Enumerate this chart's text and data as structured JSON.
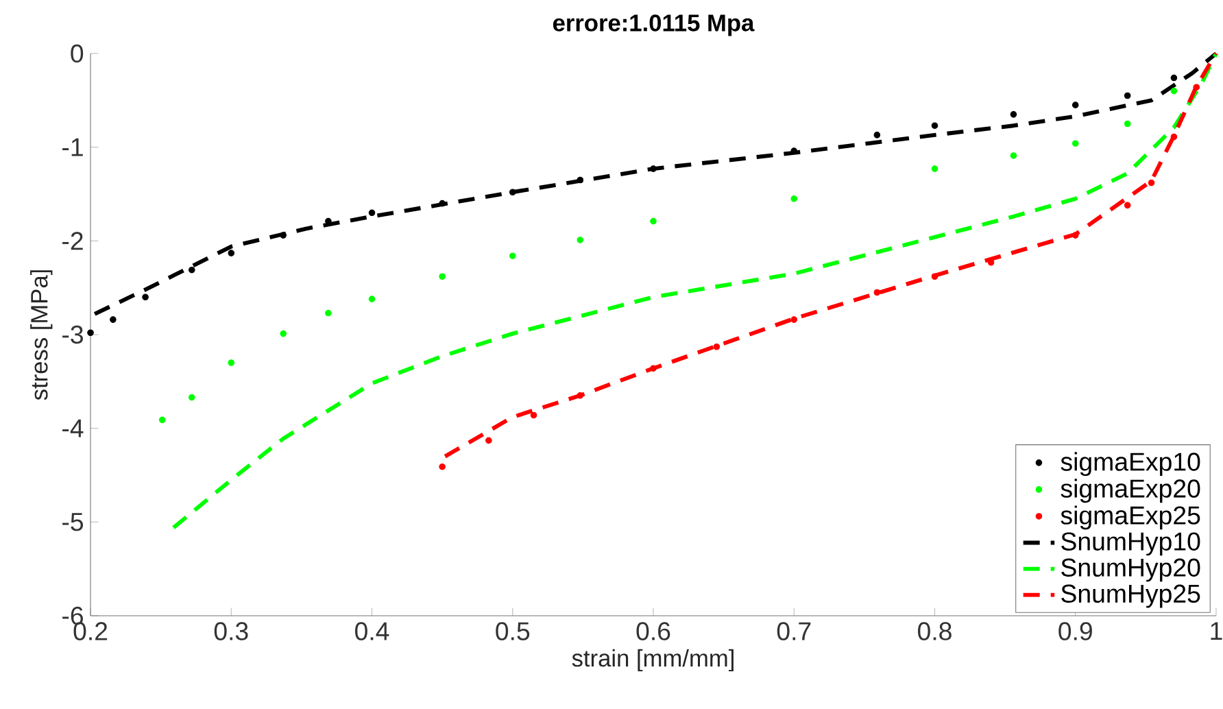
{
  "chart_data": {
    "type": "line",
    "title": "errore:1.0115 Mpa",
    "xlabel": "strain [mm/mm]",
    "ylabel": "stress [MPa]",
    "xlim": [
      0.2,
      1
    ],
    "ylim": [
      -6,
      0
    ],
    "xticks": [
      0.2,
      0.3,
      0.4,
      0.5,
      0.6,
      0.7,
      0.8,
      0.9,
      1
    ],
    "yticks": [
      -6,
      -5,
      -4,
      -3,
      -2,
      -1,
      0
    ],
    "grid": false,
    "legend": "bottom right",
    "series": [
      {
        "name": "sigmaExp10",
        "type": "scatter",
        "marker": "circle",
        "color": "#000000",
        "x": [
          0.2,
          0.216,
          0.239,
          0.272,
          0.3,
          0.337,
          0.369,
          0.4,
          0.45,
          0.5,
          0.548,
          0.6,
          0.7,
          0.759,
          0.8,
          0.856,
          0.9,
          0.937,
          0.97
        ],
        "values": [
          -2.98,
          -2.84,
          -2.6,
          -2.31,
          -2.13,
          -1.94,
          -1.79,
          -1.7,
          -1.6,
          -1.48,
          -1.35,
          -1.23,
          -1.04,
          -0.87,
          -0.77,
          -0.65,
          -0.55,
          -0.45,
          -0.26
        ]
      },
      {
        "name": "sigmaExp20",
        "type": "scatter",
        "marker": "circle",
        "color": "#00ff00",
        "x": [
          0.251,
          0.272,
          0.3,
          0.337,
          0.369,
          0.4,
          0.45,
          0.5,
          0.548,
          0.6,
          0.7,
          0.8,
          0.856,
          0.9,
          0.937,
          0.97
        ],
        "values": [
          -3.91,
          -3.67,
          -3.3,
          -2.99,
          -2.77,
          -2.62,
          -2.38,
          -2.16,
          -1.99,
          -1.79,
          -1.55,
          -1.23,
          -1.09,
          -0.96,
          -0.75,
          -0.4
        ]
      },
      {
        "name": "sigmaExp25",
        "type": "scatter",
        "marker": "circle",
        "color": "#ff0000",
        "x": [
          0.45,
          0.483,
          0.515,
          0.548,
          0.6,
          0.645,
          0.7,
          0.759,
          0.8,
          0.84,
          0.9,
          0.937,
          0.954,
          0.97,
          0.986
        ],
        "values": [
          -4.41,
          -4.13,
          -3.86,
          -3.65,
          -3.36,
          -3.13,
          -2.84,
          -2.55,
          -2.38,
          -2.23,
          -1.94,
          -1.62,
          -1.38,
          -0.89,
          -0.36
        ]
      },
      {
        "name": "SnumHyp10",
        "line_style": "dashed",
        "color": "#000000",
        "x": [
          0.203,
          0.239,
          0.3,
          0.353,
          0.4,
          0.5,
          0.6,
          0.7,
          0.8,
          0.856,
          0.9,
          0.954,
          0.983,
          1.0
        ],
        "values": [
          -2.78,
          -2.52,
          -2.06,
          -1.87,
          -1.74,
          -1.48,
          -1.23,
          -1.06,
          -0.87,
          -0.77,
          -0.67,
          -0.5,
          -0.21,
          0
        ]
      },
      {
        "name": "SnumHyp20",
        "line_style": "dashed",
        "color": "#00ff00",
        "x": [
          0.259,
          0.3,
          0.337,
          0.4,
          0.45,
          0.5,
          0.6,
          0.7,
          0.8,
          0.856,
          0.9,
          0.937,
          0.97,
          0.99,
          1.0
        ],
        "values": [
          -5.06,
          -4.55,
          -4.11,
          -3.52,
          -3.23,
          -2.99,
          -2.6,
          -2.35,
          -1.96,
          -1.74,
          -1.55,
          -1.28,
          -0.79,
          -0.31,
          0
        ]
      },
      {
        "name": "SnumHyp25",
        "line_style": "dashed",
        "color": "#ff0000",
        "x": [
          0.452,
          0.5,
          0.548,
          0.6,
          0.7,
          0.8,
          0.9,
          0.954,
          0.97,
          0.986,
          1.0
        ],
        "values": [
          -4.3,
          -3.88,
          -3.65,
          -3.36,
          -2.83,
          -2.37,
          -1.93,
          -1.36,
          -0.88,
          -0.35,
          0
        ]
      }
    ]
  }
}
